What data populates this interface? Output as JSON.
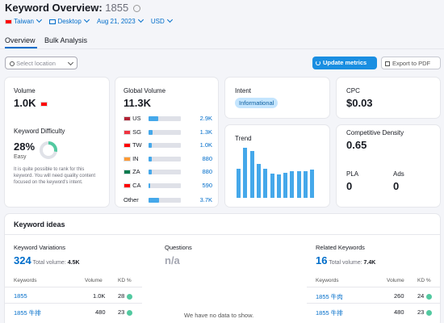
{
  "header": {
    "title": "Keyword Overview:",
    "keyword": "1855",
    "filters": {
      "country": "Taiwan",
      "device": "Desktop",
      "date": "Aug 21, 2023",
      "currency": "USD"
    }
  },
  "tabs": [
    {
      "label": "Overview",
      "active": true
    },
    {
      "label": "Bulk Analysis",
      "active": false
    }
  ],
  "toolbar": {
    "location_placeholder": "Select location",
    "update_label": "Update metrics",
    "export_label": "Export to PDF"
  },
  "volume": {
    "label": "Volume",
    "value": "1.0K"
  },
  "kd": {
    "label": "Keyword Difficulty",
    "value": "28%",
    "level": "Easy",
    "percent": 28,
    "description": "It is quite possible to rank for this keyword. You will need quality content focused on the keyword's intent."
  },
  "global_volume": {
    "label": "Global Volume",
    "value": "11.3K",
    "rows": [
      {
        "code": "US",
        "value": "2.9K",
        "fill": 0.29
      },
      {
        "code": "SG",
        "value": "1.3K",
        "fill": 0.13
      },
      {
        "code": "TW",
        "value": "1.0K",
        "fill": 0.1
      },
      {
        "code": "IN",
        "value": "880",
        "fill": 0.09
      },
      {
        "code": "ZA",
        "value": "880",
        "fill": 0.09
      },
      {
        "code": "CA",
        "value": "590",
        "fill": 0.06
      },
      {
        "code": "Other",
        "value": "3.7K",
        "fill": 0.33
      }
    ]
  },
  "intent": {
    "label": "Intent",
    "badge": "Informational"
  },
  "trend": {
    "label": "Trend",
    "values": [
      0.58,
      1.0,
      0.93,
      0.68,
      0.58,
      0.48,
      0.46,
      0.5,
      0.53,
      0.53,
      0.53,
      0.56
    ]
  },
  "cpc": {
    "label": "CPC",
    "value": "$0.03"
  },
  "density": {
    "label": "Competitive Density",
    "value": "0.65"
  },
  "pla": {
    "label": "PLA",
    "value": "0"
  },
  "ads": {
    "label": "Ads",
    "value": "0"
  },
  "ideas": {
    "title": "Keyword ideas",
    "variations": {
      "label": "Keyword Variations",
      "count": "324",
      "total_label": "Total volume:",
      "total": "4.5K",
      "columns": [
        "Keywords",
        "Volume",
        "KD %"
      ],
      "rows": [
        {
          "keyword": "1855",
          "volume": "1.0K",
          "kd": "28"
        },
        {
          "keyword": "1855 牛排",
          "volume": "480",
          "kd": "23"
        }
      ]
    },
    "questions": {
      "label": "Questions",
      "count": "n/a",
      "empty": "We have no data to show."
    },
    "related": {
      "label": "Related Keywords",
      "count": "16",
      "total_label": "Total volume:",
      "total": "7.4K",
      "columns": [
        "Keywords",
        "Volume",
        "KD %"
      ],
      "rows": [
        {
          "keyword": "1855 牛肉",
          "volume": "260",
          "kd": "24"
        },
        {
          "keyword": "1855 牛排",
          "volume": "480",
          "kd": "23"
        }
      ]
    }
  },
  "colors": {
    "accent": "#006dca",
    "button": "#1a8ee1",
    "bar": "#45a8ea",
    "kd_ring": "#52c9a0",
    "badge_bg": "#c4e5fe"
  }
}
